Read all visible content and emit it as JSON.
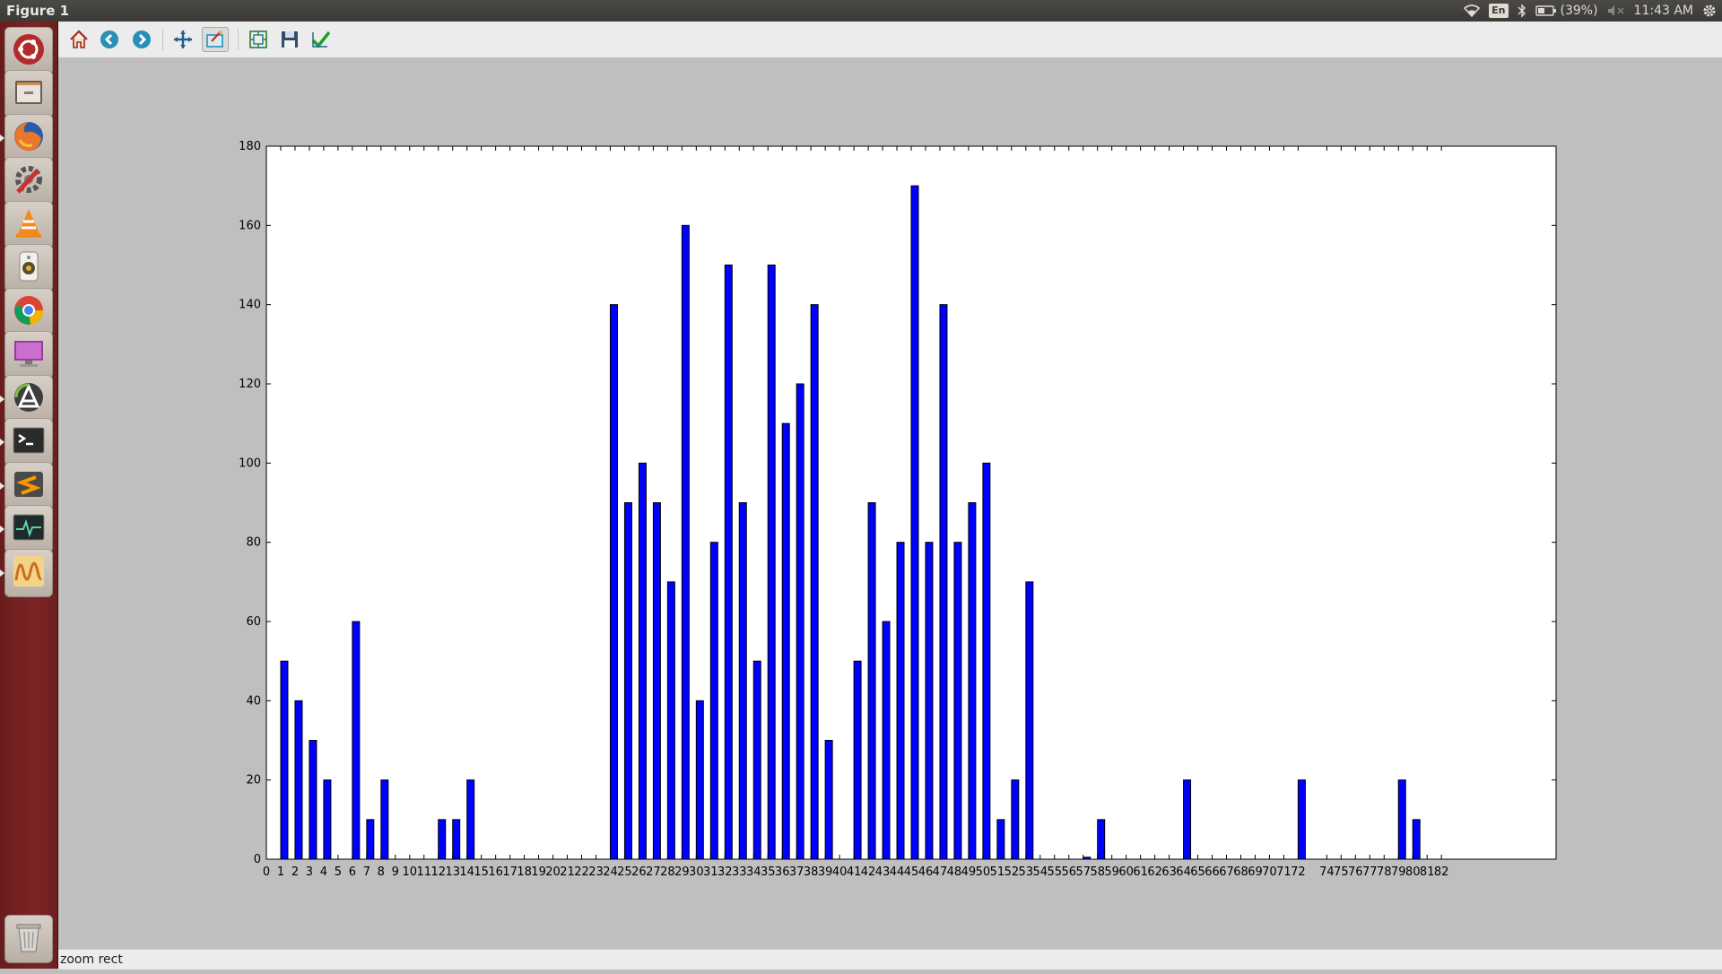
{
  "window": {
    "title": "Figure 1"
  },
  "top_panel": {
    "language": "En",
    "battery_text": "(39%)",
    "clock": "11:43 AM",
    "icons": [
      "wifi-icon",
      "keyboard-language-icon",
      "bluetooth-icon",
      "battery-icon",
      "volume-muted-icon",
      "gear-icon"
    ]
  },
  "launcher": {
    "items": [
      {
        "name": "dash-home-icon"
      },
      {
        "name": "files-icon"
      },
      {
        "name": "firefox-icon"
      },
      {
        "name": "system-settings-icon"
      },
      {
        "name": "vlc-icon"
      },
      {
        "name": "rhythmbox-icon"
      },
      {
        "name": "chrome-icon"
      },
      {
        "name": "remote-desktop-icon"
      },
      {
        "name": "software-updater-icon"
      },
      {
        "name": "terminal-icon"
      },
      {
        "name": "sublime-text-icon"
      },
      {
        "name": "system-monitor-icon"
      },
      {
        "name": "oscilloscope-icon"
      }
    ],
    "trash": {
      "name": "trash-icon"
    }
  },
  "toolbar": {
    "buttons": [
      {
        "name": "home-button",
        "icon": "home-icon",
        "active": false
      },
      {
        "name": "back-button",
        "icon": "back-arrow-icon",
        "active": false
      },
      {
        "name": "forward-button",
        "icon": "forward-arrow-icon",
        "active": false
      },
      {
        "name": "pan-button",
        "icon": "pan-arrows-icon",
        "active": false
      },
      {
        "name": "zoom-button",
        "icon": "zoom-rect-icon",
        "active": true
      },
      {
        "name": "subplots-button",
        "icon": "subplots-icon",
        "active": false
      },
      {
        "name": "save-button",
        "icon": "save-disk-icon",
        "active": false
      },
      {
        "name": "edit-parameters-button",
        "icon": "checkmark-icon",
        "active": false
      }
    ]
  },
  "status": {
    "text": "zoom rect"
  },
  "colors": {
    "bar": "#0000ff",
    "panel": "#3c3b37",
    "launcher": "#701f1f",
    "canvas": "#bfbfbf"
  },
  "chart_data": {
    "type": "bar",
    "title": "",
    "xlabel": "",
    "ylabel": "",
    "xlim": [
      0,
      90
    ],
    "ylim": [
      0,
      180
    ],
    "yticks": [
      0,
      20,
      40,
      60,
      80,
      100,
      120,
      140,
      160,
      180
    ],
    "xtick_labels": [
      "0",
      "1",
      "2",
      "3",
      "4",
      "5",
      "6",
      "7",
      "8",
      "9",
      "10",
      "11",
      "12",
      "13",
      "14",
      "15",
      "16",
      "17",
      "18",
      "19",
      "20",
      "21",
      "22",
      "23",
      "24",
      "25",
      "26",
      "27",
      "28",
      "29",
      "30",
      "31",
      "32",
      "33",
      "34",
      "35",
      "36",
      "37",
      "38",
      "39",
      "40",
      "41",
      "42",
      "43",
      "44",
      "45",
      "46",
      "47",
      "48",
      "49",
      "50",
      "51",
      "52",
      "53",
      "54",
      "55",
      "56",
      "57",
      "58",
      "59",
      "60",
      "61",
      "62",
      "63",
      "64",
      "65",
      "66",
      "67",
      "68",
      "69",
      "70",
      "71",
      "72",
      "74",
      "75",
      "76",
      "77",
      "78",
      "79",
      "80",
      "81",
      "82"
    ],
    "xtick_positions": [
      0,
      1,
      2,
      3,
      4,
      5,
      6,
      7,
      8,
      9,
      10,
      11,
      12,
      13,
      14,
      15,
      16,
      17,
      18,
      19,
      20,
      21,
      22,
      23,
      24,
      25,
      26,
      27,
      28,
      29,
      30,
      31,
      32,
      33,
      34,
      35,
      36,
      37,
      38,
      39,
      40,
      41,
      42,
      43,
      44,
      45,
      46,
      47,
      48,
      49,
      50,
      51,
      52,
      53,
      54,
      55,
      56,
      57,
      58,
      59,
      60,
      61,
      62,
      63,
      64,
      65,
      66,
      67,
      68,
      69,
      70,
      71,
      72,
      74,
      75,
      76,
      77,
      78,
      79,
      80,
      81,
      82
    ],
    "x": [
      0,
      1,
      2,
      3,
      4,
      5,
      6,
      7,
      8,
      9,
      10,
      11,
      12,
      13,
      14,
      15,
      16,
      17,
      18,
      19,
      20,
      21,
      22,
      23,
      24,
      25,
      26,
      27,
      28,
      29,
      30,
      31,
      32,
      33,
      34,
      35,
      36,
      37,
      38,
      39,
      40,
      41,
      42,
      43,
      44,
      45,
      46,
      47,
      48,
      49,
      50,
      51,
      52,
      53,
      54,
      55,
      56,
      57,
      58,
      59,
      60,
      61,
      62,
      63,
      64,
      65,
      66,
      67,
      68,
      69,
      70,
      71,
      72,
      74,
      75,
      76,
      77,
      78,
      79,
      80,
      81,
      82
    ],
    "values": [
      0,
      50,
      40,
      30,
      20,
      0,
      60,
      10,
      20,
      0,
      0,
      0,
      10,
      10,
      20,
      0,
      0,
      0,
      0,
      0,
      0,
      0,
      0,
      0,
      140,
      90,
      100,
      90,
      70,
      160,
      40,
      80,
      150,
      90,
      50,
      150,
      110,
      120,
      140,
      30,
      0,
      50,
      90,
      60,
      80,
      170,
      80,
      140,
      80,
      90,
      100,
      10,
      20,
      70,
      0,
      0,
      0,
      0.5,
      10,
      0,
      0,
      0,
      0,
      0,
      20,
      0,
      0,
      0,
      0,
      0,
      0,
      0,
      20,
      0,
      0,
      0,
      0,
      0,
      20,
      10,
      0,
      0
    ],
    "bar_width": 0.5,
    "grid": false,
    "legend": "none"
  }
}
